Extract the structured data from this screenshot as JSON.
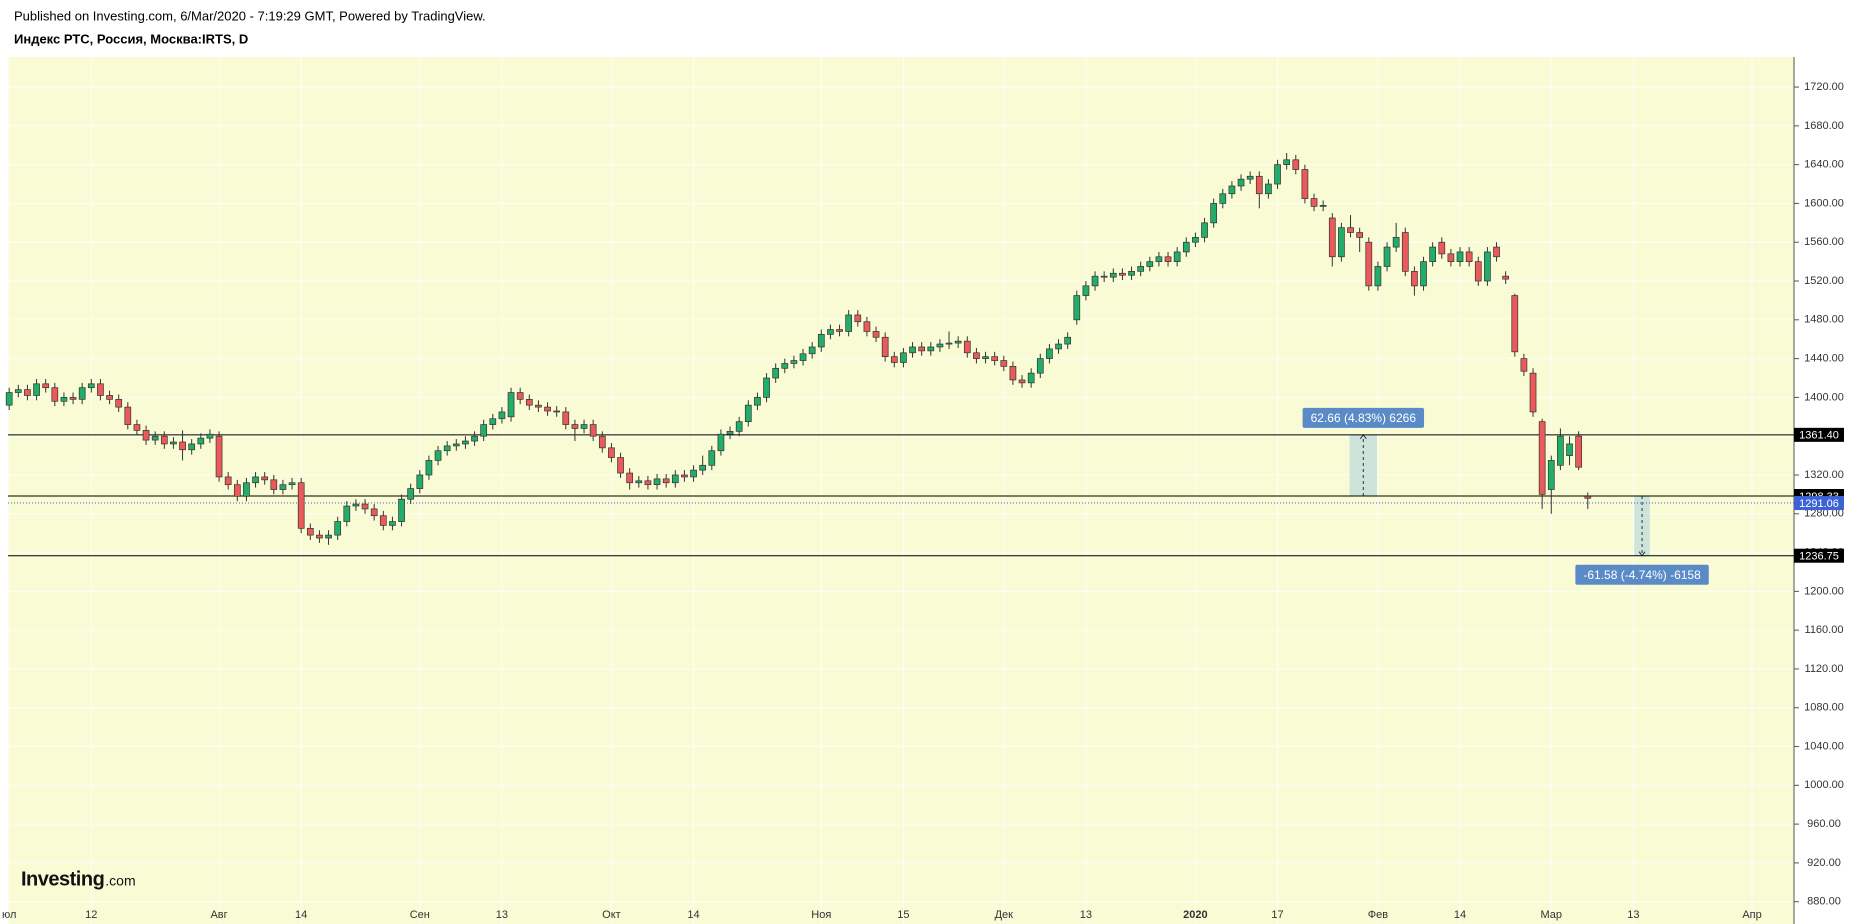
{
  "chart_data": {
    "type": "candlestick",
    "subtitle": "Published on Investing.com, 6/Mar/2020 - 7:19:29 GMT, Powered by TradingView.",
    "title": "Индекс РТС, Россия, Москва:IRTS, D",
    "logo": "Investing",
    "logo_suffix": ".com",
    "background": "#f8fbd3",
    "grid": true,
    "up_color": "#22ad6a",
    "down_color": "#ea5a5a",
    "xlim": [
      -0.13,
      195.6
    ],
    "ylim": [
      857,
      1751
    ],
    "xticks": [
      {
        "value": 0,
        "label": "юл"
      },
      {
        "value": 9,
        "label": "12"
      },
      {
        "value": 23,
        "label": "Авг"
      },
      {
        "value": 32,
        "label": "14"
      },
      {
        "value": 45,
        "label": "Сен"
      },
      {
        "value": 54,
        "label": "13"
      },
      {
        "value": 66,
        "label": "Окт"
      },
      {
        "value": 75,
        "label": "14"
      },
      {
        "value": 89,
        "label": "Ноя"
      },
      {
        "value": 98,
        "label": "15"
      },
      {
        "value": 109,
        "label": "Дек"
      },
      {
        "value": 118,
        "label": "13"
      },
      {
        "value": 130,
        "label": "2020"
      },
      {
        "value": 139,
        "label": "17"
      },
      {
        "value": 150,
        "label": "Фев"
      },
      {
        "value": 159,
        "label": "14"
      },
      {
        "value": 169,
        "label": "Мар"
      },
      {
        "value": 178,
        "label": "13"
      },
      {
        "value": 191,
        "label": "Апр"
      }
    ],
    "yticks": [
      {
        "value": 880,
        "label": "880.00"
      },
      {
        "value": 920,
        "label": "920.00"
      },
      {
        "value": 960,
        "label": "960.00"
      },
      {
        "value": 1000,
        "label": "1000.00"
      },
      {
        "value": 1040,
        "label": "1040.00"
      },
      {
        "value": 1080,
        "label": "1080.00"
      },
      {
        "value": 1120,
        "label": "1120.00"
      },
      {
        "value": 1160,
        "label": "1160.00"
      },
      {
        "value": 1200,
        "label": "1200.00"
      },
      {
        "value": 1240,
        "label": "1240.00"
      },
      {
        "value": 1280,
        "label": "1280.00"
      },
      {
        "value": 1320,
        "label": "1320.00"
      },
      {
        "value": 1360,
        "label": "1360.00"
      },
      {
        "value": 1400,
        "label": "1400.00"
      },
      {
        "value": 1440,
        "label": "1440.00"
      },
      {
        "value": 1480,
        "label": "1480.00"
      },
      {
        "value": 1520,
        "label": "1520.00"
      },
      {
        "value": 1560,
        "label": "1560.00"
      },
      {
        "value": 1600,
        "label": "1600.00"
      },
      {
        "value": 1640,
        "label": "1640.00"
      },
      {
        "value": 1680,
        "label": "1680.00"
      },
      {
        "value": 1720,
        "label": "1720.00"
      }
    ],
    "open": [
      1392,
      1405,
      1408,
      1402,
      1414,
      1410,
      1396,
      1400,
      1398,
      1410,
      1414,
      1402,
      1398,
      1390,
      1372,
      1366,
      1356,
      1360,
      1352,
      1354,
      1346,
      1352,
      1358,
      1360,
      1318,
      1310,
      1298,
      1312,
      1318,
      1315,
      1305,
      1310,
      1312,
      1265,
      1258,
      1255,
      1258,
      1272,
      1288,
      1290,
      1285,
      1278,
      1268,
      1272,
      1295,
      1306,
      1320,
      1335,
      1345,
      1350,
      1352,
      1355,
      1360,
      1372,
      1378,
      1380,
      1405,
      1398,
      1392,
      1390,
      1386,
      1385,
      1372,
      1368,
      1372,
      1360,
      1348,
      1338,
      1322,
      1312,
      1314,
      1310,
      1316,
      1312,
      1320,
      1318,
      1325,
      1330,
      1345,
      1362,
      1365,
      1375,
      1392,
      1400,
      1420,
      1430,
      1435,
      1438,
      1445,
      1452,
      1465,
      1470,
      1468,
      1485,
      1478,
      1468,
      1462,
      1442,
      1436,
      1446,
      1452,
      1448,
      1452,
      1455,
      1456,
      1458,
      1446,
      1440,
      1442,
      1438,
      1432,
      1418,
      1415,
      1425,
      1440,
      1450,
      1455,
      1480,
      1505,
      1515,
      1525,
      1524,
      1528,
      1526,
      1530,
      1535,
      1540,
      1545,
      1540,
      1550,
      1560,
      1565,
      1580,
      1600,
      1610,
      1618,
      1625,
      1628,
      1610,
      1620,
      1640,
      1645,
      1635,
      1605,
      1597,
      1585,
      1545,
      1575,
      1570,
      1560,
      1515,
      1535,
      1555,
      1570,
      1530,
      1515,
      1540,
      1560,
      1548,
      1540,
      1550,
      1540,
      1520,
      1555,
      1525,
      1505,
      1440,
      1425,
      1375,
      1305,
      1330,
      1340,
      1360,
      1298
    ],
    "high": [
      1410,
      1413,
      1413,
      1419,
      1419,
      1415,
      1405,
      1405,
      1415,
      1419,
      1419,
      1407,
      1403,
      1395,
      1377,
      1371,
      1365,
      1365,
      1359,
      1366,
      1357,
      1363,
      1367,
      1365,
      1323,
      1315,
      1317,
      1323,
      1323,
      1320,
      1315,
      1317,
      1317,
      1270,
      1263,
      1263,
      1277,
      1293,
      1295,
      1295,
      1290,
      1283,
      1277,
      1300,
      1311,
      1325,
      1340,
      1350,
      1355,
      1357,
      1360,
      1365,
      1377,
      1383,
      1390,
      1410,
      1410,
      1403,
      1397,
      1395,
      1391,
      1390,
      1377,
      1377,
      1377,
      1365,
      1353,
      1343,
      1327,
      1319,
      1319,
      1321,
      1321,
      1325,
      1325,
      1330,
      1340,
      1350,
      1367,
      1370,
      1380,
      1397,
      1405,
      1425,
      1435,
      1440,
      1443,
      1450,
      1457,
      1470,
      1475,
      1475,
      1490,
      1490,
      1483,
      1473,
      1467,
      1447,
      1451,
      1457,
      1457,
      1457,
      1460,
      1468,
      1463,
      1463,
      1451,
      1447,
      1447,
      1443,
      1437,
      1423,
      1430,
      1445,
      1455,
      1460,
      1467,
      1510,
      1520,
      1530,
      1530,
      1533,
      1533,
      1535,
      1540,
      1545,
      1550,
      1550,
      1555,
      1565,
      1570,
      1585,
      1605,
      1615,
      1623,
      1630,
      1633,
      1633,
      1625,
      1645,
      1652,
      1650,
      1640,
      1610,
      1603,
      1590,
      1580,
      1588,
      1575,
      1565,
      1540,
      1560,
      1580,
      1575,
      1535,
      1545,
      1560,
      1565,
      1553,
      1555,
      1555,
      1545,
      1555,
      1560,
      1530,
      1507,
      1445,
      1430,
      1378,
      1340,
      1368,
      1360,
      1365,
      1302
    ],
    "low": [
      1387,
      1400,
      1397,
      1397,
      1405,
      1391,
      1391,
      1393,
      1393,
      1405,
      1397,
      1393,
      1385,
      1367,
      1361,
      1351,
      1351,
      1347,
      1347,
      1335,
      1341,
      1347,
      1353,
      1313,
      1305,
      1293,
      1293,
      1307,
      1310,
      1300,
      1300,
      1305,
      1260,
      1253,
      1250,
      1248,
      1253,
      1267,
      1283,
      1280,
      1273,
      1263,
      1263,
      1267,
      1290,
      1301,
      1315,
      1330,
      1340,
      1345,
      1347,
      1350,
      1355,
      1367,
      1373,
      1375,
      1393,
      1387,
      1385,
      1381,
      1380,
      1367,
      1355,
      1363,
      1355,
      1343,
      1333,
      1317,
      1305,
      1307,
      1305,
      1305,
      1307,
      1307,
      1313,
      1313,
      1320,
      1325,
      1340,
      1357,
      1360,
      1370,
      1387,
      1395,
      1415,
      1425,
      1430,
      1433,
      1440,
      1447,
      1460,
      1463,
      1463,
      1473,
      1463,
      1457,
      1437,
      1431,
      1431,
      1441,
      1443,
      1443,
      1447,
      1450,
      1451,
      1441,
      1435,
      1435,
      1433,
      1427,
      1413,
      1410,
      1410,
      1420,
      1435,
      1445,
      1450,
      1475,
      1500,
      1510,
      1519,
      1519,
      1521,
      1521,
      1525,
      1530,
      1535,
      1535,
      1535,
      1545,
      1555,
      1560,
      1575,
      1595,
      1605,
      1613,
      1620,
      1595,
      1605,
      1615,
      1635,
      1630,
      1600,
      1592,
      1592,
      1535,
      1540,
      1565,
      1550,
      1510,
      1510,
      1530,
      1550,
      1525,
      1505,
      1510,
      1535,
      1543,
      1535,
      1535,
      1535,
      1515,
      1515,
      1540,
      1517,
      1442,
      1422,
      1380,
      1285,
      1280,
      1325,
      1330,
      1325,
      1285
    ],
    "close": [
      1405,
      1408,
      1402,
      1414,
      1410,
      1396,
      1400,
      1398,
      1410,
      1414,
      1402,
      1398,
      1390,
      1372,
      1366,
      1356,
      1360,
      1352,
      1354,
      1346,
      1352,
      1358,
      1362,
      1318,
      1310,
      1298,
      1312,
      1318,
      1315,
      1305,
      1310,
      1312,
      1265,
      1258,
      1255,
      1258,
      1272,
      1288,
      1290,
      1285,
      1278,
      1268,
      1272,
      1295,
      1306,
      1320,
      1335,
      1345,
      1350,
      1352,
      1355,
      1360,
      1372,
      1378,
      1385,
      1405,
      1398,
      1392,
      1390,
      1386,
      1385,
      1372,
      1368,
      1372,
      1360,
      1348,
      1338,
      1322,
      1312,
      1314,
      1310,
      1316,
      1312,
      1320,
      1318,
      1325,
      1330,
      1345,
      1362,
      1365,
      1375,
      1392,
      1400,
      1420,
      1430,
      1435,
      1438,
      1445,
      1452,
      1465,
      1470,
      1468,
      1485,
      1478,
      1468,
      1462,
      1442,
      1436,
      1446,
      1452,
      1448,
      1452,
      1455,
      1456,
      1458,
      1446,
      1440,
      1442,
      1438,
      1432,
      1418,
      1415,
      1425,
      1440,
      1450,
      1455,
      1462,
      1505,
      1515,
      1525,
      1524,
      1528,
      1526,
      1530,
      1535,
      1540,
      1545,
      1540,
      1550,
      1560,
      1565,
      1580,
      1600,
      1610,
      1618,
      1625,
      1628,
      1610,
      1620,
      1640,
      1645,
      1635,
      1605,
      1597,
      1598,
      1545,
      1575,
      1570,
      1565,
      1515,
      1535,
      1555,
      1565,
      1530,
      1515,
      1540,
      1555,
      1548,
      1540,
      1550,
      1540,
      1520,
      1550,
      1545,
      1522,
      1447,
      1427,
      1385,
      1300,
      1335,
      1360,
      1352,
      1328,
      1296
    ],
    "hlines": [
      {
        "value": 1361.4,
        "label": "1361.40"
      },
      {
        "value": 1298.33,
        "label": "1298.33"
      },
      {
        "value": 1236.75,
        "label": "1236.75"
      }
    ],
    "hline_color": "#000000",
    "last_price": {
      "value": 1291.06,
      "label": "1291.06",
      "color": "#3b62d6"
    },
    "annotations": [
      {
        "text": "62.66 (4.83%) 6266",
        "color": "#5b8bc7"
      },
      {
        "text": "-61.58 (-4.74%) -6158",
        "color": "#5b8bc7"
      }
    ]
  }
}
